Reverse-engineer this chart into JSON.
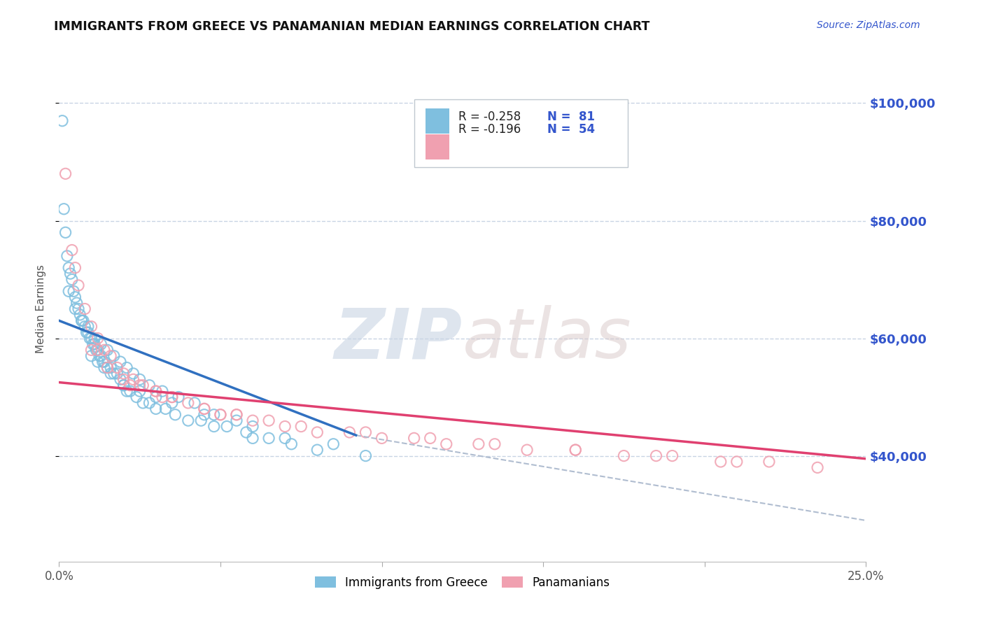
{
  "title": "IMMIGRANTS FROM GREECE VS PANAMANIAN MEDIAN EARNINGS CORRELATION CHART",
  "source_text": "Source: ZipAtlas.com",
  "ylabel": "Median Earnings",
  "watermark_zip": "ZIP",
  "watermark_atlas": "atlas",
  "xmin": 0.0,
  "xmax": 25.0,
  "ymin": 22000,
  "ymax": 108000,
  "yticks": [
    40000,
    60000,
    80000,
    100000
  ],
  "ytick_labels": [
    "$40,000",
    "$60,000",
    "$80,000",
    "$100,000"
  ],
  "legend_r1": "R = -0.258",
  "legend_n1": "N =  81",
  "legend_r2": "R = -0.196",
  "legend_n2": "N =  54",
  "blue_color": "#7fbfdf",
  "pink_color": "#f0a0b0",
  "line_blue": "#3070c0",
  "line_pink": "#e04070",
  "line_dashed_color": "#b0bdd0",
  "axis_blue": "#3355cc",
  "title_color": "#111111",
  "bg_color": "#ffffff",
  "grid_color": "#c8d4e4",
  "greece_x": [
    0.1,
    0.15,
    0.2,
    0.25,
    0.3,
    0.35,
    0.4,
    0.45,
    0.5,
    0.55,
    0.6,
    0.65,
    0.7,
    0.75,
    0.8,
    0.85,
    0.9,
    0.95,
    1.0,
    1.05,
    1.1,
    1.15,
    1.2,
    1.25,
    1.3,
    1.35,
    1.4,
    1.5,
    1.6,
    1.7,
    1.8,
    1.9,
    2.0,
    2.1,
    2.2,
    2.4,
    2.6,
    2.8,
    3.0,
    3.3,
    3.6,
    4.0,
    4.4,
    4.8,
    5.2,
    5.8,
    6.5,
    7.2,
    8.0,
    0.3,
    0.5,
    0.7,
    0.9,
    1.1,
    1.3,
    1.5,
    1.7,
    1.9,
    2.1,
    2.3,
    2.5,
    2.8,
    3.2,
    3.7,
    4.2,
    4.8,
    5.5,
    6.0,
    7.0,
    8.5,
    9.5,
    1.0,
    1.2,
    1.4,
    1.6,
    2.0,
    2.5,
    3.0,
    3.5,
    4.5,
    6.0
  ],
  "greece_y": [
    97000,
    82000,
    78000,
    74000,
    72000,
    71000,
    70000,
    68000,
    67000,
    66000,
    65000,
    64000,
    63000,
    63000,
    62000,
    61000,
    61000,
    60000,
    60000,
    59000,
    59000,
    58000,
    58000,
    57000,
    57000,
    56000,
    56000,
    55000,
    55000,
    54000,
    54000,
    53000,
    52000,
    51000,
    51000,
    50000,
    49000,
    49000,
    48000,
    48000,
    47000,
    46000,
    46000,
    45000,
    45000,
    44000,
    43000,
    42000,
    41000,
    68000,
    65000,
    63000,
    62000,
    60000,
    59000,
    58000,
    57000,
    56000,
    55000,
    54000,
    53000,
    52000,
    51000,
    50000,
    49000,
    47000,
    46000,
    45000,
    43000,
    42000,
    40000,
    57000,
    56000,
    55000,
    54000,
    52000,
    51000,
    50000,
    49000,
    47000,
    43000
  ],
  "panama_x": [
    0.2,
    0.4,
    0.6,
    0.8,
    1.0,
    1.2,
    1.4,
    1.6,
    1.8,
    2.0,
    2.3,
    2.6,
    3.0,
    3.5,
    4.0,
    4.5,
    5.0,
    5.5,
    6.0,
    7.0,
    8.0,
    9.0,
    10.0,
    11.0,
    12.0,
    13.0,
    14.5,
    16.0,
    17.5,
    19.0,
    20.5,
    22.0,
    23.5,
    1.0,
    1.5,
    2.0,
    2.5,
    3.0,
    3.5,
    4.5,
    5.5,
    6.5,
    7.5,
    9.5,
    11.5,
    13.5,
    16.0,
    18.5,
    21.0,
    0.5,
    1.2,
    2.2,
    3.2,
    5.0
  ],
  "panama_y": [
    88000,
    75000,
    69000,
    65000,
    62000,
    60000,
    58000,
    57000,
    55000,
    54000,
    53000,
    52000,
    51000,
    50000,
    49000,
    48000,
    47000,
    47000,
    46000,
    45000,
    44000,
    44000,
    43000,
    43000,
    42000,
    42000,
    41000,
    41000,
    40000,
    40000,
    39000,
    39000,
    38000,
    58000,
    55000,
    53000,
    52000,
    51000,
    50000,
    48000,
    47000,
    46000,
    45000,
    44000,
    43000,
    42000,
    41000,
    40000,
    39000,
    72000,
    58000,
    52000,
    50000,
    47000
  ],
  "blue_line_x0": 0.0,
  "blue_line_x1": 9.2,
  "blue_line_y0": 63000,
  "blue_line_y1": 43500,
  "pink_line_x0": 0.0,
  "pink_line_x1": 25.0,
  "pink_line_y0": 52500,
  "pink_line_y1": 39500,
  "dash_line_x0": 9.2,
  "dash_line_x1": 25.0,
  "dash_line_y0": 43500,
  "dash_line_y1": 29000
}
